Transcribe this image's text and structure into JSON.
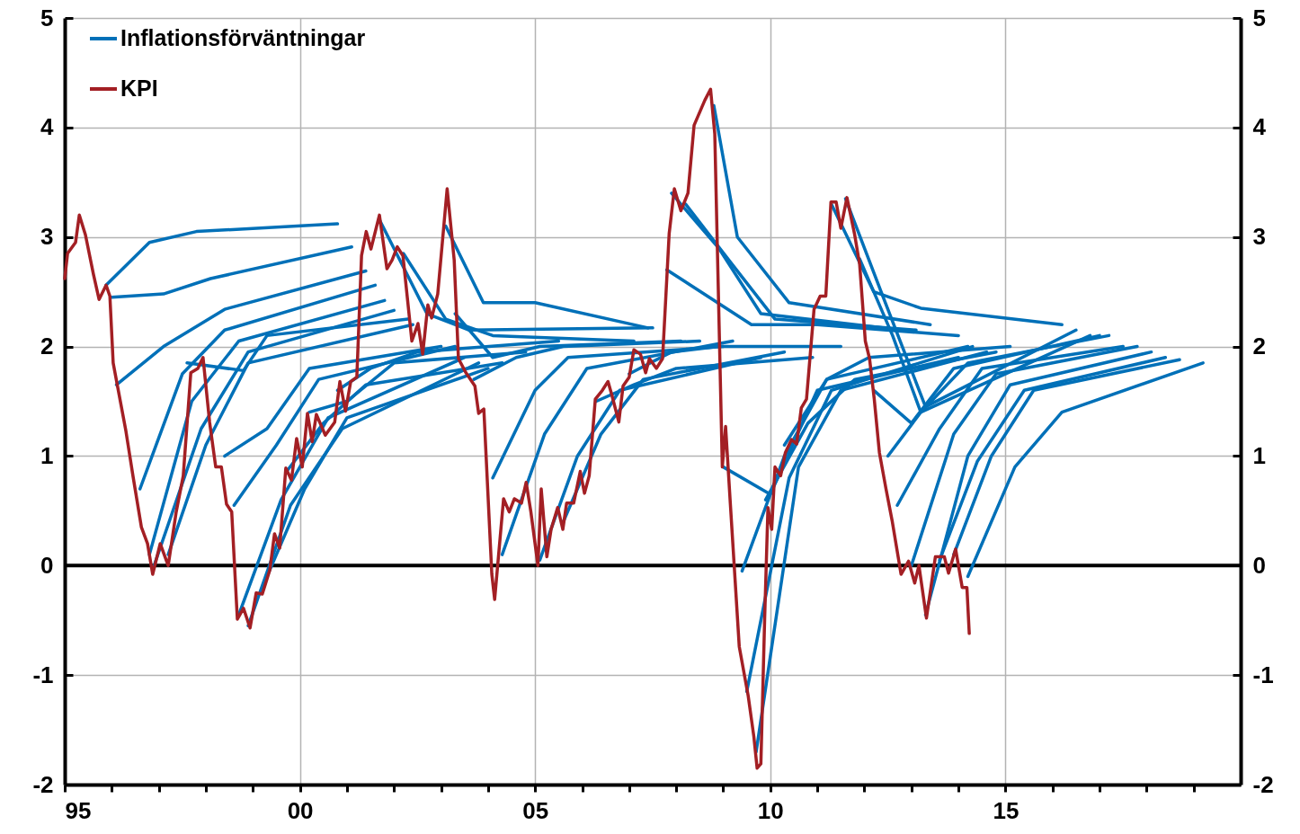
{
  "chart_data": {
    "type": "line",
    "xlim": [
      1995,
      2020
    ],
    "ylim": [
      -2,
      5
    ],
    "y2lim": [
      -2,
      5
    ],
    "xticks": [
      {
        "value": 1995,
        "label": "95"
      },
      {
        "value": 1996,
        "label": null
      },
      {
        "value": 1997,
        "label": null
      },
      {
        "value": 1998,
        "label": null
      },
      {
        "value": 1999,
        "label": null
      },
      {
        "value": 2000,
        "label": "00"
      },
      {
        "value": 2001,
        "label": null
      },
      {
        "value": 2002,
        "label": null
      },
      {
        "value": 2003,
        "label": null
      },
      {
        "value": 2004,
        "label": null
      },
      {
        "value": 2005,
        "label": "05"
      },
      {
        "value": 2006,
        "label": null
      },
      {
        "value": 2007,
        "label": null
      },
      {
        "value": 2008,
        "label": null
      },
      {
        "value": 2009,
        "label": null
      },
      {
        "value": 2010,
        "label": "10"
      },
      {
        "value": 2011,
        "label": null
      },
      {
        "value": 2012,
        "label": null
      },
      {
        "value": 2013,
        "label": null
      },
      {
        "value": 2014,
        "label": null
      },
      {
        "value": 2015,
        "label": "15"
      },
      {
        "value": 2016,
        "label": null
      },
      {
        "value": 2017,
        "label": null
      },
      {
        "value": 2018,
        "label": null
      },
      {
        "value": 2019,
        "label": null
      }
    ],
    "yticks": [
      -2,
      -1,
      0,
      1,
      2,
      3,
      4,
      5
    ],
    "y2ticks": [
      -2,
      -1,
      0,
      1,
      2,
      3,
      4,
      5
    ],
    "grid": true,
    "legend": "top left",
    "marker": "none",
    "line_style": "solid",
    "ref_lines": [
      {
        "axis": "y",
        "value": 0,
        "color": "#000000"
      }
    ],
    "series": [
      {
        "name": "Inflationsförväntningar",
        "color": "#0070b8",
        "x": [
          1995.88,
          1996.8,
          1997.8,
          2000.8
        ],
        "values": [
          2.56,
          2.95,
          3.05,
          3.12
        ]
      },
      {
        "color": "#0070b8",
        "x": [
          1996.0,
          1997.1,
          1998.1,
          2001.1
        ],
        "values": [
          2.45,
          2.48,
          2.62,
          2.91
        ]
      },
      {
        "color": "#0070b8",
        "x": [
          1996.1,
          1997.1,
          1998.4,
          2001.4
        ],
        "values": [
          1.65,
          2.0,
          2.34,
          2.69
        ]
      },
      {
        "color": "#0070b8",
        "x": [
          1996.6,
          1997.5,
          1998.4,
          2001.6
        ],
        "values": [
          0.7,
          1.75,
          2.15,
          2.56
        ]
      },
      {
        "color": "#0070b8",
        "x": [
          1996.8,
          1997.7,
          1998.7,
          2001.8
        ],
        "values": [
          0.1,
          1.5,
          2.05,
          2.42
        ]
      },
      {
        "color": "#0070b8",
        "x": [
          1996.9,
          1997.9,
          1998.9,
          2002.0
        ],
        "values": [
          0.0,
          1.25,
          1.95,
          2.33
        ]
      },
      {
        "color": "#0070b8",
        "x": [
          1997.2,
          1998.0,
          1998.9,
          2002.4
        ],
        "values": [
          0.1,
          1.1,
          1.85,
          2.2
        ]
      },
      {
        "color": "#0070b8",
        "x": [
          1997.6,
          1998.8,
          1999.3,
          2002.3
        ],
        "values": [
          1.85,
          1.78,
          2.1,
          2.25
        ]
      },
      {
        "color": "#0070b8",
        "x": [
          1998.4,
          1999.3,
          2000.2,
          2003.0
        ],
        "values": [
          1.0,
          1.25,
          1.8,
          2.0
        ]
      },
      {
        "color": "#0070b8",
        "x": [
          1998.6,
          1999.5,
          2000.4,
          2003.3
        ],
        "values": [
          0.55,
          1.1,
          1.7,
          2.0
        ]
      },
      {
        "color": "#0070b8",
        "x": [
          1998.7,
          1999.6,
          2000.6,
          2003.5
        ],
        "values": [
          -0.45,
          0.6,
          1.35,
          1.9
        ]
      },
      {
        "color": "#0070b8",
        "x": [
          1998.9,
          1999.8,
          2000.9,
          2003.8
        ],
        "values": [
          -0.55,
          0.55,
          1.25,
          1.85
        ]
      },
      {
        "color": "#0070b8",
        "x": [
          1999.2,
          2000.1,
          2001.0,
          2004.0
        ],
        "values": [
          -0.2,
          0.7,
          1.35,
          1.8
        ]
      },
      {
        "color": "#0070b8",
        "x": [
          1999.7,
          2000.5,
          2001.4,
          2004.3
        ],
        "values": [
          0.85,
          1.3,
          1.65,
          1.85
        ]
      },
      {
        "color": "#0070b8",
        "x": [
          2000.2,
          2001.0,
          2002.0,
          2004.8
        ],
        "values": [
          1.4,
          1.5,
          1.85,
          1.95
        ]
      },
      {
        "color": "#0070b8",
        "x": [
          2000.8,
          2001.5,
          2002.5,
          2005.5
        ],
        "values": [
          1.6,
          1.8,
          1.95,
          2.05
        ]
      },
      {
        "color": "#0070b8",
        "x": [
          2001.7,
          2002.7,
          2003.6,
          2007.5
        ],
        "values": [
          3.15,
          2.3,
          2.15,
          2.17
        ]
      },
      {
        "color": "#0070b8",
        "x": [
          2002.2,
          2003.1,
          2004.1,
          2007.1
        ],
        "values": [
          2.85,
          2.25,
          2.1,
          2.05
        ]
      },
      {
        "color": "#0070b8",
        "x": [
          2003.1,
          2003.9,
          2005.0,
          2007.4
        ],
        "values": [
          3.1,
          2.4,
          2.4,
          2.17
        ]
      },
      {
        "color": "#0070b8",
        "x": [
          2003.3,
          2004.1,
          2005.1,
          2008.1
        ],
        "values": [
          2.3,
          1.9,
          2.0,
          2.05
        ]
      },
      {
        "color": "#0070b8",
        "x": [
          2003.7,
          2004.6,
          2005.6,
          2008.5
        ],
        "values": [
          1.7,
          1.9,
          2.0,
          2.05
        ]
      },
      {
        "color": "#0070b8",
        "x": [
          2004.1,
          2005.0,
          2005.7,
          2009.0
        ],
        "values": [
          0.8,
          1.6,
          1.9,
          2.0
        ]
      },
      {
        "color": "#0070b8",
        "x": [
          2004.3,
          2005.2,
          2006.1,
          2009.2
        ],
        "values": [
          0.1,
          1.2,
          1.8,
          2.05
        ]
      },
      {
        "color": "#0070b8",
        "x": [
          2005.1,
          2005.9,
          2006.8,
          2009.8
        ],
        "values": [
          0.05,
          1.0,
          1.6,
          1.9
        ]
      },
      {
        "color": "#0070b8",
        "x": [
          2005.6,
          2006.4,
          2007.3,
          2010.3
        ],
        "values": [
          0.4,
          1.2,
          1.7,
          1.95
        ]
      },
      {
        "color": "#0070b8",
        "x": [
          2006.3,
          2007.1,
          2008.0,
          2010.9
        ],
        "values": [
          1.5,
          1.65,
          1.8,
          1.9
        ]
      },
      {
        "color": "#0070b8",
        "x": [
          2007.0,
          2007.9,
          2008.9,
          2011.5
        ],
        "values": [
          1.75,
          1.95,
          2.0,
          2.0
        ]
      },
      {
        "color": "#0070b8",
        "x": [
          2007.9,
          2008.9,
          2009.8,
          2012.8
        ],
        "values": [
          3.4,
          2.9,
          2.3,
          2.15
        ]
      },
      {
        "color": "#0070b8",
        "x": [
          2008.2,
          2009.1,
          2010.1,
          2013.1
        ],
        "values": [
          3.3,
          2.8,
          2.25,
          2.15
        ]
      },
      {
        "color": "#0070b8",
        "x": [
          2008.8,
          2009.3,
          2010.4,
          2013.4
        ],
        "values": [
          4.2,
          3.0,
          2.4,
          2.2
        ]
      },
      {
        "color": "#0070b8",
        "x": [
          2007.8,
          2009.6,
          2011.0,
          2014.0
        ],
        "values": [
          2.7,
          2.2,
          2.2,
          2.1
        ]
      },
      {
        "color": "#0070b8",
        "x": [
          2009.0,
          2010.0,
          2011.0,
          2014.0
        ],
        "values": [
          0.9,
          0.65,
          1.6,
          1.9
        ]
      },
      {
        "color": "#0070b8",
        "x": [
          2009.4,
          2010.3,
          2011.2,
          2014.2
        ],
        "values": [
          -0.05,
          1.0,
          1.7,
          2.0
        ]
      },
      {
        "color": "#0070b8",
        "x": [
          2009.5,
          2010.4,
          2011.3,
          2014.3
        ],
        "values": [
          -1.15,
          0.8,
          1.6,
          2.0
        ]
      },
      {
        "color": "#0070b8",
        "x": [
          2009.7,
          2010.6,
          2011.5,
          2014.6
        ],
        "values": [
          -1.7,
          0.9,
          1.6,
          1.95
        ]
      },
      {
        "color": "#0070b8",
        "x": [
          2009.9,
          2010.8,
          2011.8,
          2014.8
        ],
        "values": [
          0.6,
          1.3,
          1.7,
          1.95
        ]
      },
      {
        "color": "#0070b8",
        "x": [
          2010.3,
          2011.2,
          2012.1,
          2015.1
        ],
        "values": [
          1.1,
          1.7,
          1.9,
          2.0
        ]
      },
      {
        "color": "#0070b8",
        "x": [
          2011.3,
          2012.2,
          2013.2,
          2016.2
        ],
        "values": [
          3.3,
          2.5,
          2.35,
          2.2
        ]
      },
      {
        "color": "#0070b8",
        "x": [
          2011.6,
          2012.4,
          2013.3,
          2016.5
        ],
        "values": [
          3.35,
          2.45,
          1.45,
          2.15
        ]
      },
      {
        "color": "#0070b8",
        "x": [
          2011.9,
          2012.6,
          2013.2,
          2016.8
        ],
        "values": [
          2.8,
          2.1,
          1.4,
          2.1
        ]
      },
      {
        "color": "#0070b8",
        "x": [
          2012.2,
          2013.0,
          2013.9,
          2017.0
        ],
        "values": [
          1.6,
          1.3,
          1.8,
          2.1
        ]
      },
      {
        "color": "#0070b8",
        "x": [
          2012.5,
          2013.2,
          2014.2,
          2017.2
        ],
        "values": [
          1.0,
          1.4,
          1.85,
          2.1
        ]
      },
      {
        "color": "#0070b8",
        "x": [
          2012.7,
          2013.6,
          2014.5,
          2017.5
        ],
        "values": [
          0.55,
          1.25,
          1.8,
          2.0
        ]
      },
      {
        "color": "#0070b8",
        "x": [
          2013.0,
          2013.9,
          2014.8,
          2017.8
        ],
        "values": [
          0.0,
          1.2,
          1.75,
          2.0
        ]
      },
      {
        "color": "#0070b8",
        "x": [
          2013.3,
          2014.2,
          2015.1,
          2018.1
        ],
        "values": [
          -0.45,
          1.0,
          1.65,
          1.95
        ]
      },
      {
        "color": "#0070b8",
        "x": [
          2013.6,
          2014.4,
          2015.4,
          2018.4
        ],
        "values": [
          0.05,
          0.95,
          1.6,
          1.9
        ]
      },
      {
        "color": "#0070b8",
        "x": [
          2013.9,
          2014.7,
          2015.6,
          2018.7
        ],
        "values": [
          0.1,
          1.0,
          1.6,
          1.88
        ]
      },
      {
        "color": "#0070b8",
        "x": [
          2014.2,
          2015.2,
          2016.2,
          2019.2
        ],
        "values": [
          -0.1,
          0.9,
          1.4,
          1.85
        ]
      },
      {
        "name": "KPI",
        "color": "#a31f24",
        "x": [
          1995.0,
          1995.06,
          1995.23,
          1995.31,
          1995.44,
          1995.61,
          1995.73,
          1995.88,
          1995.96,
          1996.03,
          1996.13,
          1996.3,
          1996.45,
          1996.63,
          1996.76,
          1996.87,
          1997.03,
          1997.2,
          1997.37,
          1997.52,
          1997.68,
          1997.83,
          1997.94,
          1998.08,
          1998.21,
          1998.33,
          1998.44,
          1998.55,
          1998.67,
          1998.8,
          1998.94,
          1999.07,
          1999.2,
          1999.36,
          1999.46,
          1999.57,
          1999.7,
          1999.82,
          1999.93,
          2000.05,
          2000.16,
          2000.26,
          2000.35,
          2000.54,
          2000.74,
          2000.85,
          2000.97,
          2001.08,
          2001.21,
          2001.31,
          2001.41,
          2001.51,
          2001.69,
          2001.85,
          2001.96,
          2002.07,
          2002.19,
          2002.38,
          2002.51,
          2002.61,
          2002.72,
          2002.8,
          2002.93,
          2003.13,
          2003.28,
          2003.37,
          2003.53,
          2003.72,
          2003.8,
          2003.91,
          2004.08,
          2004.14,
          2004.33,
          2004.45,
          2004.56,
          2004.71,
          2004.81,
          2004.91,
          2005.06,
          2005.13,
          2005.25,
          2005.34,
          2005.48,
          2005.59,
          2005.67,
          2005.82,
          2005.96,
          2006.05,
          2006.15,
          2006.28,
          2006.43,
          2006.55,
          2006.63,
          2006.78,
          2006.87,
          2007.0,
          2007.1,
          2007.24,
          2007.35,
          2007.43,
          2007.58,
          2007.71,
          2007.85,
          2007.96,
          2008.1,
          2008.25,
          2008.38,
          2008.54,
          2008.61,
          2008.73,
          2008.82,
          2008.98,
          2009.05,
          2009.15,
          2009.34,
          2009.53,
          2009.65,
          2009.72,
          2009.8,
          2009.88,
          2009.95,
          2010.03,
          2010.1,
          2010.22,
          2010.32,
          2010.45,
          2010.56,
          2010.66,
          2010.77,
          2010.93,
          2011.06,
          2011.18,
          2011.29,
          2011.4,
          2011.5,
          2011.63,
          2011.79,
          2011.9,
          2012.02,
          2012.11,
          2012.21,
          2012.32,
          2012.46,
          2012.59,
          2012.78,
          2012.94,
          2013.07,
          2013.16,
          2013.32,
          2013.51,
          2013.7,
          2013.79,
          2013.94,
          2014.08,
          2014.18,
          2014.23
        ],
        "values": [
          2.62,
          2.85,
          2.95,
          3.2,
          3.02,
          2.66,
          2.43,
          2.56,
          2.46,
          1.85,
          1.62,
          1.23,
          0.82,
          0.35,
          0.2,
          -0.08,
          0.2,
          0.0,
          0.49,
          0.82,
          1.76,
          1.8,
          1.9,
          1.31,
          0.9,
          0.9,
          0.56,
          0.49,
          -0.49,
          -0.39,
          -0.57,
          -0.25,
          -0.26,
          -0.04,
          0.29,
          0.16,
          0.89,
          0.78,
          1.16,
          0.9,
          1.39,
          1.13,
          1.38,
          1.19,
          1.31,
          1.68,
          1.41,
          1.68,
          1.72,
          2.83,
          3.05,
          2.89,
          3.2,
          2.71,
          2.79,
          2.91,
          2.83,
          2.05,
          2.21,
          1.93,
          2.38,
          2.26,
          2.48,
          3.44,
          2.79,
          1.89,
          1.76,
          1.64,
          1.39,
          1.43,
          -0.08,
          -0.31,
          0.61,
          0.49,
          0.61,
          0.57,
          0.76,
          0.49,
          0.0,
          0.7,
          0.08,
          0.33,
          0.53,
          0.33,
          0.57,
          0.57,
          0.86,
          0.66,
          0.82,
          1.52,
          1.6,
          1.68,
          1.56,
          1.31,
          1.64,
          1.72,
          1.97,
          1.93,
          1.76,
          1.89,
          1.8,
          1.89,
          3.03,
          3.44,
          3.24,
          3.4,
          4.02,
          4.18,
          4.25,
          4.35,
          3.94,
          0.9,
          1.27,
          0.57,
          -0.74,
          -1.19,
          -1.56,
          -1.85,
          -1.81,
          -0.49,
          0.53,
          0.33,
          0.9,
          0.82,
          1.03,
          1.15,
          1.11,
          1.44,
          1.52,
          2.34,
          2.46,
          2.46,
          3.32,
          3.32,
          3.08,
          3.36,
          3.03,
          2.75,
          2.05,
          1.89,
          1.52,
          1.03,
          0.7,
          0.41,
          -0.08,
          0.04,
          -0.16,
          0.0,
          -0.48,
          0.08,
          0.08,
          -0.07,
          0.15,
          -0.2,
          -0.2,
          -0.62
        ]
      }
    ]
  }
}
